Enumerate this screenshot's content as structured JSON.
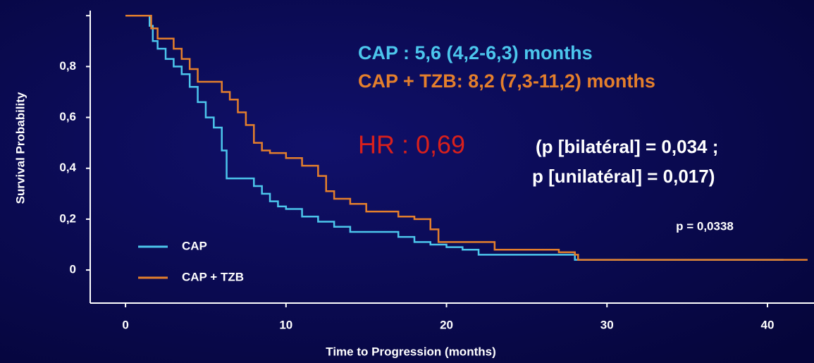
{
  "chart_data": {
    "type": "step",
    "xlabel": "Time to Progression (months)",
    "ylabel": "Survival Probability",
    "xlim": [
      -2.2,
      42.9
    ],
    "ylim": [
      -0.13,
      1.02
    ],
    "xticks": [
      0,
      10,
      20,
      30,
      40
    ],
    "yticks": [
      0,
      {
        "value": 0.2,
        "label": "0,2"
      },
      {
        "value": 0.4,
        "label": "0,4"
      },
      {
        "value": 0.6,
        "label": "0,6"
      },
      {
        "value": 0.8,
        "label": "0,8"
      }
    ],
    "legend": "lower left",
    "series": [
      {
        "name": "CAP",
        "color": "#4cc6ec",
        "x": [
          0,
          1.3,
          1.5,
          1.7,
          2,
          2.5,
          3,
          3.5,
          4,
          4.5,
          5,
          5.5,
          6,
          6.3,
          7,
          8,
          8.5,
          9,
          9.5,
          10,
          11,
          12,
          13,
          14,
          16,
          17,
          18,
          19,
          20,
          21,
          22,
          26,
          28,
          41
        ],
        "values": [
          1,
          1,
          0.96,
          0.9,
          0.87,
          0.83,
          0.8,
          0.77,
          0.72,
          0.66,
          0.6,
          0.56,
          0.47,
          0.36,
          0.36,
          0.33,
          0.3,
          0.27,
          0.25,
          0.24,
          0.21,
          0.19,
          0.17,
          0.15,
          0.15,
          0.13,
          0.11,
          0.1,
          0.09,
          0.08,
          0.06,
          0.06,
          0.04,
          0.04
        ]
      },
      {
        "name": "CAP + TZB",
        "color": "#e47f2c",
        "x": [
          0,
          1.4,
          1.6,
          2,
          3,
          3.5,
          4,
          4.5,
          5.5,
          6,
          6.5,
          7,
          7.5,
          8,
          8.5,
          9,
          10,
          11,
          12,
          12.5,
          13,
          14,
          15,
          17,
          18,
          19,
          19.5,
          22,
          23,
          26,
          27,
          28,
          28.2,
          42.5
        ],
        "values": [
          1,
          1,
          0.95,
          0.91,
          0.87,
          0.83,
          0.79,
          0.74,
          0.74,
          0.7,
          0.67,
          0.62,
          0.57,
          0.5,
          0.47,
          0.46,
          0.44,
          0.41,
          0.37,
          0.31,
          0.28,
          0.26,
          0.23,
          0.21,
          0.2,
          0.16,
          0.11,
          0.11,
          0.08,
          0.08,
          0.07,
          0.06,
          0.04,
          0.04
        ]
      }
    ],
    "annotations": [
      {
        "text": "CAP : 5,6 (4,2-6,3) months",
        "color": "#4cc6ec"
      },
      {
        "text": "CAP + TZB: 8,2 (7,3-11,2) months",
        "color": "#e47f2c"
      },
      {
        "text": "HR : 0,69",
        "color": "#d8201c"
      },
      {
        "text": "(p [bilatéral] = 0,034 ;",
        "color": "#ffffff"
      },
      {
        "text": "p [unilatéral] = 0,017)",
        "color": "#ffffff"
      },
      {
        "text": "p = 0,0338",
        "color": "#ffffff"
      }
    ]
  }
}
